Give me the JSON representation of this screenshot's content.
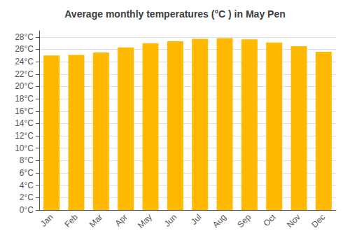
{
  "chart_data": {
    "type": "bar",
    "title": "Average monthly temperatures (°C ) in May Pen",
    "categories": [
      "Jan",
      "Feb",
      "Mar",
      "Apr",
      "May",
      "Jun",
      "Jul",
      "Aug",
      "Sep",
      "Oct",
      "Nov",
      "Dec"
    ],
    "values": [
      25.0,
      25.1,
      25.5,
      26.3,
      27.0,
      27.3,
      27.7,
      27.8,
      27.6,
      27.1,
      26.5,
      25.6
    ],
    "color": "#FFB900",
    "ylim": [
      0,
      29
    ],
    "yticks": [
      {
        "value": 0,
        "label": "0°C"
      },
      {
        "value": 2,
        "label": "2°C"
      },
      {
        "value": 4,
        "label": "4°C"
      },
      {
        "value": 6,
        "label": "6°C"
      },
      {
        "value": 8,
        "label": "8°C"
      },
      {
        "value": 10,
        "label": "10°C"
      },
      {
        "value": 12,
        "label": "12°C"
      },
      {
        "value": 14,
        "label": "14°C"
      },
      {
        "value": 16,
        "label": "16°C"
      },
      {
        "value": 18,
        "label": "18°C"
      },
      {
        "value": 20,
        "label": "20°C"
      },
      {
        "value": 22,
        "label": "22°C"
      },
      {
        "value": 24,
        "label": "24°C"
      },
      {
        "value": 26,
        "label": "26°C"
      },
      {
        "value": 28,
        "label": "28°C"
      }
    ],
    "grid": true
  }
}
